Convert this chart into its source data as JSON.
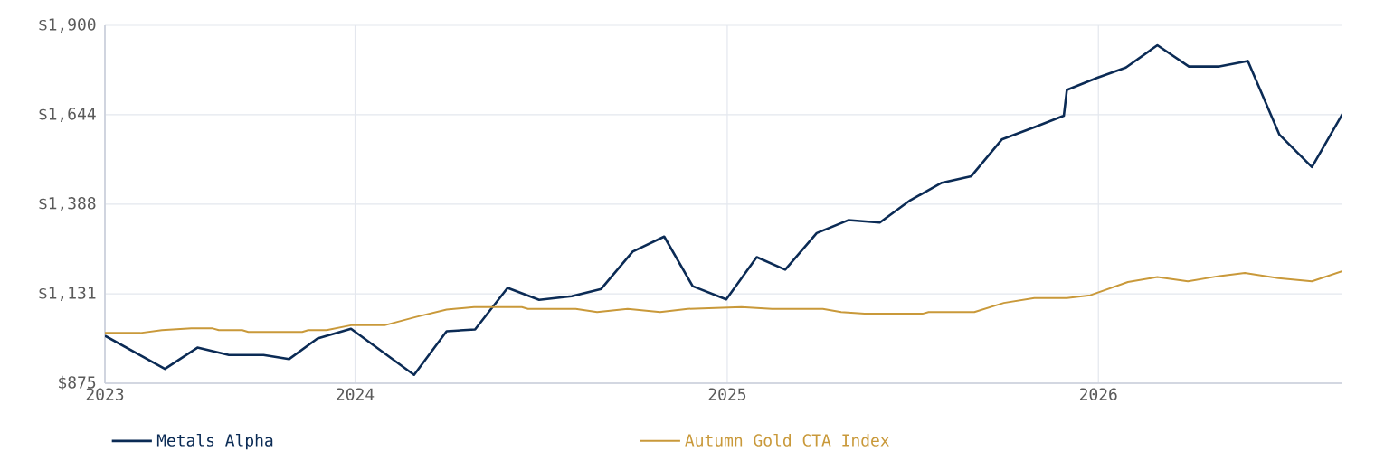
{
  "chart_data": {
    "type": "line",
    "xlim": [
      "2023-04-30",
      "2026-08-29"
    ],
    "xticks": [
      {
        "value": "2023-04-30",
        "label": "2023"
      },
      {
        "value": "2024-01-01",
        "label": "2024"
      },
      {
        "value": "2025-01-01",
        "label": "2025"
      },
      {
        "value": "2026-01-01",
        "label": "2026"
      }
    ],
    "ylim": [
      875,
      1900
    ],
    "yticks": [
      {
        "value": 875,
        "label": "$875"
      },
      {
        "value": 1131,
        "label": "$1,131"
      },
      {
        "value": 1388,
        "label": "$1,388"
      },
      {
        "value": 1644,
        "label": "$1,644"
      },
      {
        "value": 1900,
        "label": "$1,900"
      }
    ],
    "grid": true,
    "legend": "bottom",
    "marker": "none",
    "line_style": "solid",
    "series": [
      {
        "name": "Metals Alpha",
        "color": "#0b2b55",
        "x": [
          "2023-04-30",
          "2023-06-28",
          "2023-07-30",
          "2023-08-30",
          "2023-10-03",
          "2023-10-28",
          "2023-11-25",
          "2023-12-28",
          "2024-02-28",
          "2024-03-31",
          "2024-04-28",
          "2024-05-30",
          "2024-06-30",
          "2024-08-01",
          "2024-08-30",
          "2024-09-30",
          "2024-10-31",
          "2024-11-28",
          "2024-12-31",
          "2025-01-30",
          "2025-02-27",
          "2025-03-30",
          "2025-04-30",
          "2025-05-31",
          "2025-06-30",
          "2025-07-31",
          "2025-08-29",
          "2025-09-28",
          "2025-10-30",
          "2025-11-28",
          "2025-12-01",
          "2025-12-31",
          "2026-01-28",
          "2026-02-28",
          "2026-03-31",
          "2026-04-30",
          "2026-05-28",
          "2026-06-28",
          "2026-07-30",
          "2026-08-29"
        ],
        "values": [
          1011,
          916,
          977,
          956,
          956,
          944,
          1003,
          1031,
          899,
          1024,
          1029,
          1148,
          1114,
          1124,
          1145,
          1252,
          1295,
          1153,
          1115,
          1236,
          1200,
          1305,
          1342,
          1335,
          1399,
          1449,
          1468,
          1573,
          1608,
          1641,
          1715,
          1750,
          1779,
          1843,
          1782,
          1782,
          1798,
          1587,
          1494,
          1646
        ]
      },
      {
        "name": "Autumn Gold CTA Index",
        "color": "#c9993a",
        "x": [
          "2023-04-30",
          "2023-06-04",
          "2023-06-25",
          "2023-07-24",
          "2023-08-14",
          "2023-08-20",
          "2023-09-12",
          "2023-09-18",
          "2023-11-10",
          "2023-11-16",
          "2023-12-04",
          "2023-12-28",
          "2024-01-30",
          "2024-03-01",
          "2024-03-31",
          "2024-04-27",
          "2024-06-13",
          "2024-06-19",
          "2024-08-05",
          "2024-08-26",
          "2024-09-25",
          "2024-10-27",
          "2024-11-23",
          "2025-01-15",
          "2025-02-14",
          "2025-04-05",
          "2025-04-23",
          "2025-05-16",
          "2025-07-12",
          "2025-07-18",
          "2025-09-01",
          "2025-09-30",
          "2025-10-30",
          "2025-12-01",
          "2025-12-24",
          "2026-01-30",
          "2026-02-28",
          "2026-03-30",
          "2026-04-30",
          "2026-05-25",
          "2026-06-27",
          "2026-07-30",
          "2026-08-29"
        ],
        "values": [
          1019,
          1019,
          1027,
          1032,
          1032,
          1027,
          1027,
          1022,
          1022,
          1027,
          1027,
          1041,
          1041,
          1065,
          1086,
          1093,
          1093,
          1088,
          1088,
          1079,
          1088,
          1079,
          1088,
          1093,
          1088,
          1088,
          1079,
          1074,
          1074,
          1079,
          1079,
          1105,
          1119,
          1119,
          1127,
          1165,
          1179,
          1167,
          1182,
          1191,
          1176,
          1167,
          1196
        ]
      }
    ]
  }
}
